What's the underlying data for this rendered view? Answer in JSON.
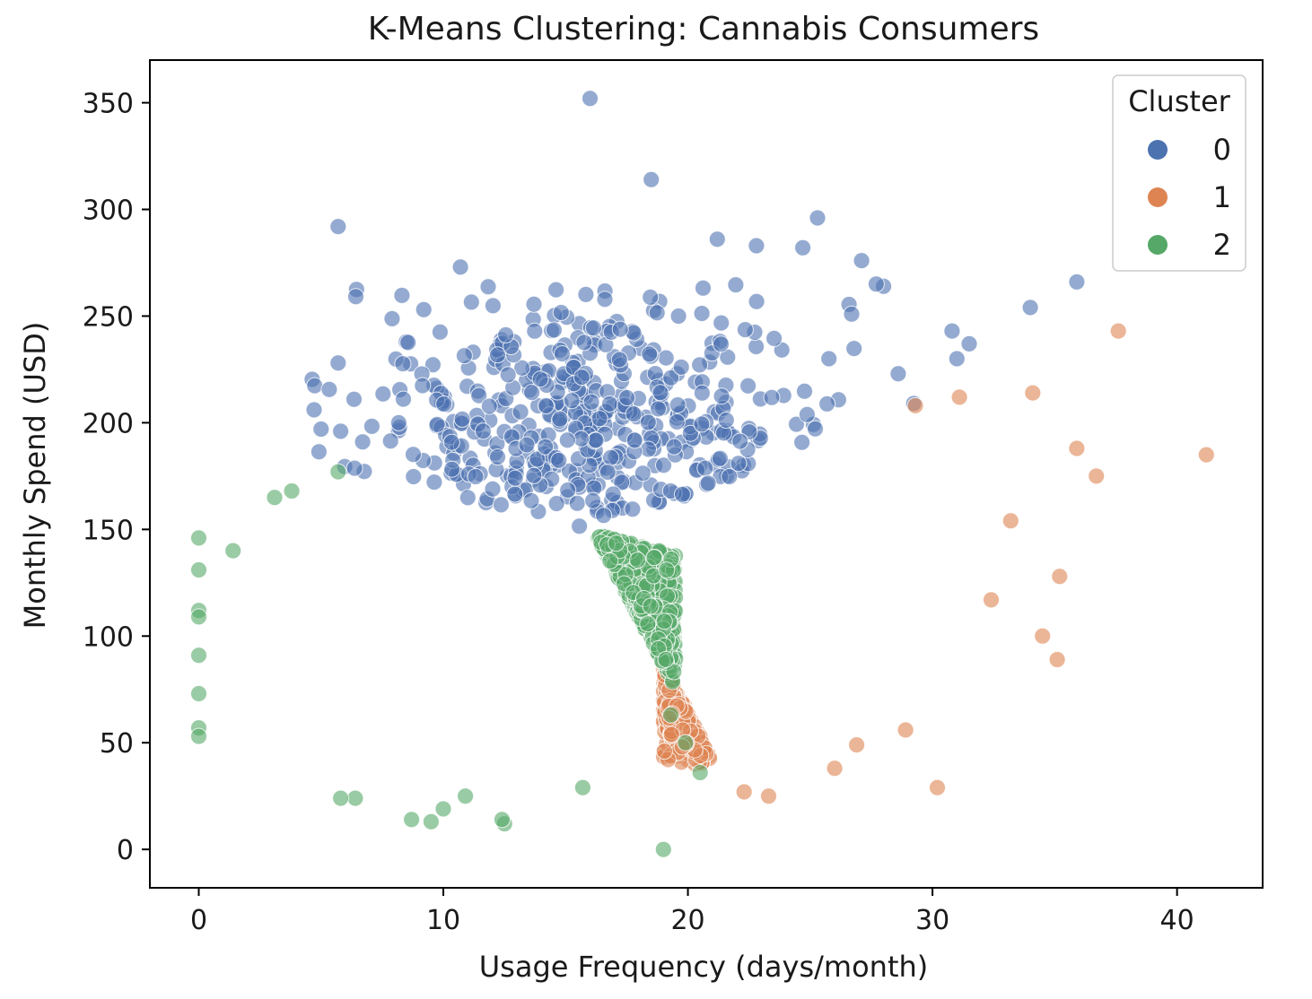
{
  "chart_data": {
    "type": "scatter",
    "title": "K-Means Clustering: Cannabis Consumers",
    "xlabel": "Usage Frequency (days/month)",
    "ylabel": "Monthly Spend (USD)",
    "xlim": [
      -2,
      43.5
    ],
    "ylim": [
      -18,
      370
    ],
    "xticks": [
      0,
      10,
      20,
      30,
      40
    ],
    "yticks": [
      0,
      50,
      100,
      150,
      200,
      250,
      300,
      350
    ],
    "grid": false,
    "legend": {
      "title": "Cluster",
      "placement": "top-right",
      "entries": [
        {
          "label": "0",
          "color": "#4c72b0"
        },
        {
          "label": "1",
          "color": "#dd8452"
        },
        {
          "label": "2",
          "color": "#55a868"
        }
      ]
    },
    "marker_alpha": 0.6,
    "series": [
      {
        "name": "0",
        "color": "#4c72b0",
        "n_points": 480,
        "center": [
          16,
          198
        ],
        "spread": [
          5.2,
          34
        ],
        "boundary": "above the line through (16.2,148) and (26.5,196); above the line through (6.5,177) and (16.2,148); left of x = 30",
        "outliers": [
          [
            16,
            352
          ],
          [
            18.5,
            314
          ],
          [
            5.7,
            292
          ],
          [
            25.3,
            296
          ],
          [
            21.2,
            286
          ],
          [
            22.8,
            283
          ],
          [
            24.7,
            282
          ],
          [
            27.1,
            276
          ],
          [
            35.9,
            266
          ],
          [
            34,
            254
          ],
          [
            31.5,
            237
          ],
          [
            30.8,
            243
          ],
          [
            31,
            230
          ],
          [
            5.7,
            228
          ],
          [
            9.2,
            253
          ],
          [
            10.7,
            273
          ],
          [
            28,
            264
          ],
          [
            27.7,
            265
          ],
          [
            28.6,
            223
          ],
          [
            5,
            197
          ],
          [
            5.8,
            196
          ],
          [
            6.7,
            191
          ]
        ]
      },
      {
        "name": "1",
        "color": "#dd8452",
        "n_points": 330,
        "center": [
          26.5,
          130
        ],
        "spread": [
          4.7,
          37
        ],
        "boundary": "below the line through (16.2,148) and (26.5,196); right of the line through (16.2,148) and (19.2,82); x > 19",
        "outliers": [
          [
            41.2,
            185
          ],
          [
            37.6,
            243
          ],
          [
            36.7,
            175
          ],
          [
            35.9,
            188
          ],
          [
            35.2,
            128
          ],
          [
            35.1,
            89
          ],
          [
            34.5,
            100
          ],
          [
            34.1,
            214
          ],
          [
            33.2,
            154
          ],
          [
            32.4,
            117
          ],
          [
            30.2,
            29
          ],
          [
            23.3,
            25
          ],
          [
            22.3,
            27
          ],
          [
            26,
            38
          ],
          [
            26.9,
            49
          ],
          [
            28.9,
            56
          ],
          [
            29.3,
            208
          ],
          [
            31.1,
            212
          ]
        ]
      },
      {
        "name": "2",
        "color": "#55a868",
        "n_points": 620,
        "center": [
          10.5,
          105
        ],
        "spread": [
          5,
          34
        ],
        "boundary": "below the line through (6.5,177) and (16.2,148); left of the line through (16.2,148) and (19.2,82); x < 19.5",
        "outliers": [
          [
            19,
            0
          ],
          [
            12.5,
            12
          ],
          [
            12.4,
            14
          ],
          [
            9.5,
            13
          ],
          [
            8.7,
            14
          ],
          [
            10,
            19
          ],
          [
            10.9,
            25
          ],
          [
            6.4,
            24
          ],
          [
            5.8,
            24
          ],
          [
            15.7,
            29
          ],
          [
            19.3,
            63
          ],
          [
            19.9,
            50
          ],
          [
            20.5,
            36
          ],
          [
            0,
            146
          ],
          [
            0,
            131
          ],
          [
            0,
            112
          ],
          [
            0,
            109
          ],
          [
            0,
            91
          ],
          [
            0,
            73
          ],
          [
            0,
            57
          ],
          [
            0,
            53
          ],
          [
            1.4,
            140
          ],
          [
            3.1,
            165
          ],
          [
            3.8,
            168
          ],
          [
            5.7,
            177
          ]
        ]
      }
    ]
  }
}
